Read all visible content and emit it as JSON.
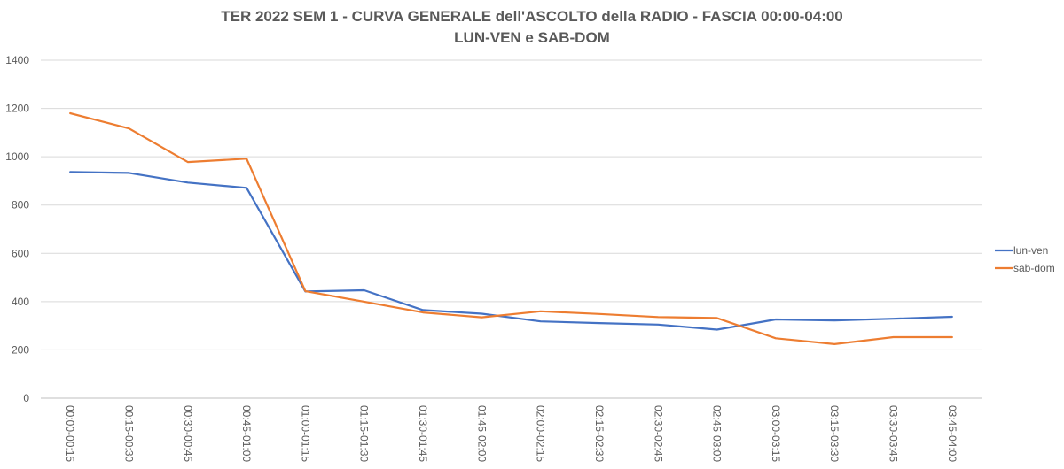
{
  "chart_data": {
    "type": "line",
    "title": "TER 2022 SEM 1 - CURVA GENERALE dell'ASCOLTO della RADIO - FASCIA 00:00-04:00",
    "subtitle": "LUN-VEN e SAB-DOM",
    "xlabel": "",
    "ylabel": "",
    "ylim": [
      0,
      1400
    ],
    "yticks": [
      0,
      200,
      400,
      600,
      800,
      1000,
      1200,
      1400
    ],
    "grid": true,
    "legend_position": "right",
    "categories": [
      "00:00-00:15",
      "00:15-00:30",
      "00:30-00:45",
      "00:45-01:00",
      "01:00-01:15",
      "01:15-01:30",
      "01:30-01:45",
      "01:45-02:00",
      "02:00-02:15",
      "02:15-02:30",
      "02:30-02:45",
      "02:45-03:00",
      "03:00-03:15",
      "03:15-03:30",
      "03:30-03:45",
      "03:45-04:00"
    ],
    "series": [
      {
        "name": "lun-ven",
        "color": "#4472c4",
        "values": [
          937,
          933,
          893,
          871,
          442,
          447,
          365,
          350,
          318,
          311,
          305,
          284,
          326,
          322,
          329,
          337
        ]
      },
      {
        "name": "sab-dom",
        "color": "#ed7d31",
        "values": [
          1180,
          1117,
          978,
          992,
          443,
          400,
          355,
          335,
          360,
          349,
          336,
          332,
          248,
          224,
          253,
          253
        ]
      }
    ]
  }
}
